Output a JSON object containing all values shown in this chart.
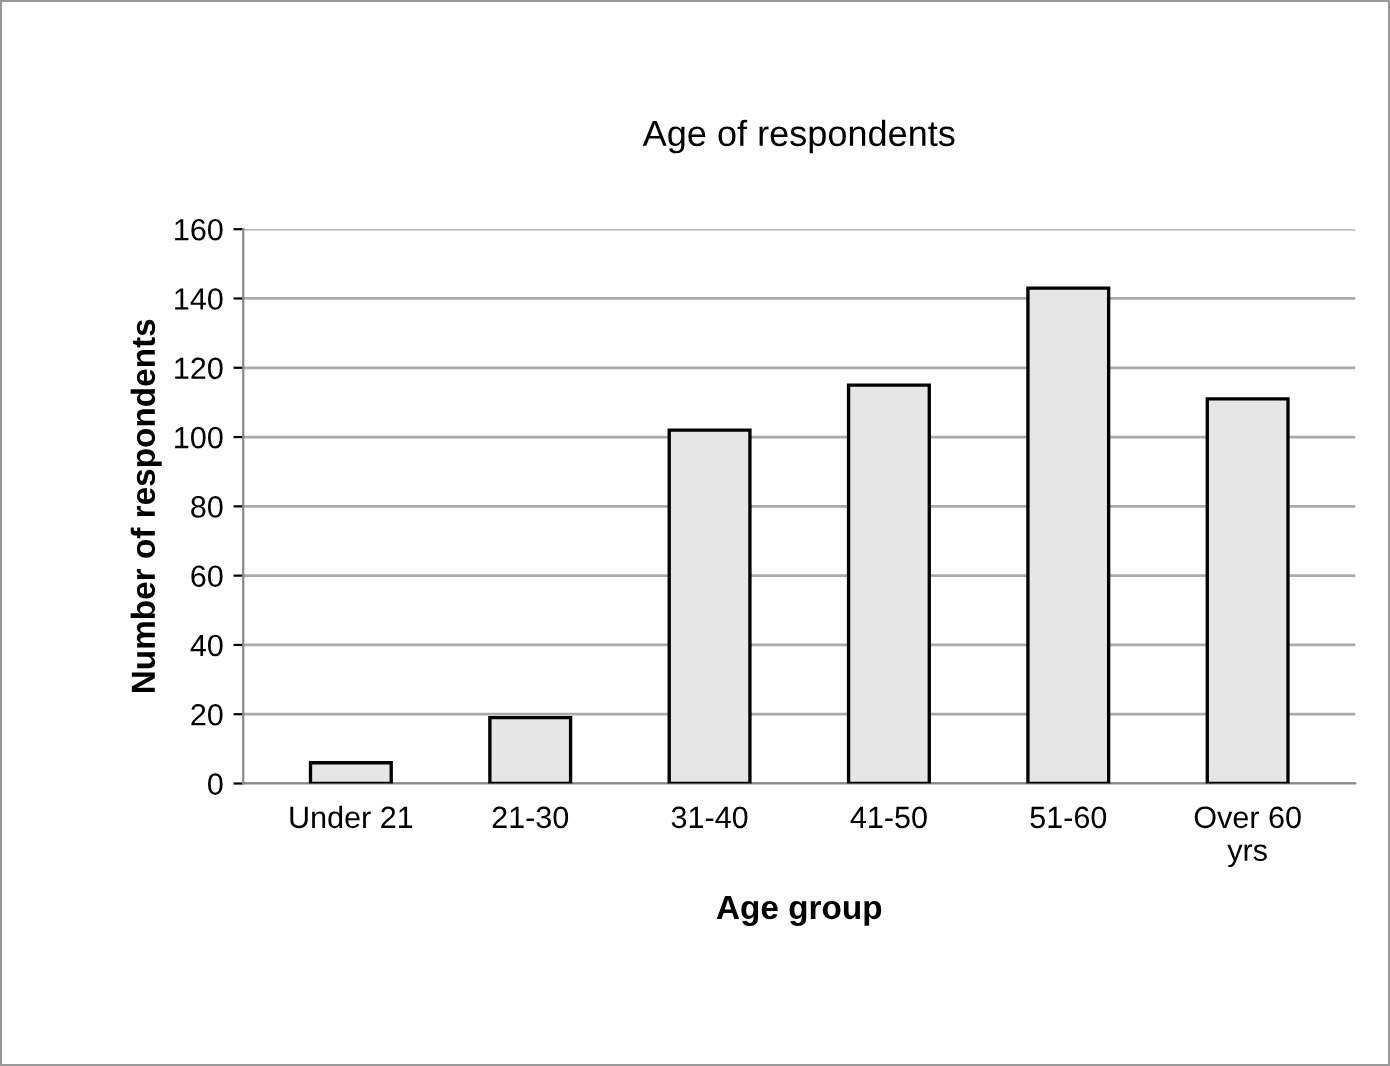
{
  "chart_data": {
    "type": "bar",
    "title": "Age of respondents",
    "xlabel": "Age group",
    "ylabel": "Number of respondents",
    "categories": [
      "Under 21",
      "21-30",
      "31-40",
      "41-50",
      "51-60",
      "Over 60\nyrs"
    ],
    "values": [
      6,
      19,
      102,
      115,
      143,
      111
    ],
    "color": "#e6e6e6",
    "ylim": [
      0,
      160
    ],
    "yticks": [
      0,
      20,
      40,
      60,
      80,
      100,
      120,
      140,
      160
    ],
    "grid": "y",
    "legend": false
  }
}
